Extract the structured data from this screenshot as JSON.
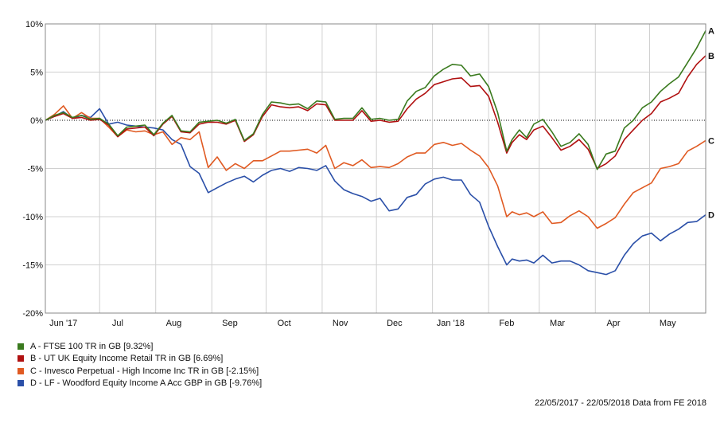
{
  "chart_data": {
    "type": "line",
    "title": "",
    "xlabel": "",
    "ylabel": "",
    "ylim": [
      -20,
      10
    ],
    "yticks": [
      10,
      5,
      0,
      -5,
      -10,
      -15,
      -20
    ],
    "ytick_labels": [
      "10%",
      "5%",
      "0%",
      "-5%",
      "-10%",
      "-15%",
      "-20%"
    ],
    "xlim": [
      0,
      365
    ],
    "xtick_labels": [
      "Jun '17",
      "Jul",
      "Aug",
      "Sep",
      "Oct",
      "Nov",
      "Dec",
      "Jan '18",
      "Feb",
      "Mar",
      "Apr",
      "May"
    ],
    "xticks": [
      10,
      40,
      71,
      102,
      132,
      163,
      193,
      224,
      255,
      283,
      314,
      344
    ],
    "grid": true,
    "zero_line": true,
    "legend_position": "bottom-left",
    "series": [
      {
        "name": "A - FTSE 100 TR in GB [9.32%]",
        "end_label": "A",
        "color": "#3a7a1e",
        "x": [
          0,
          5,
          10,
          15,
          20,
          25,
          30,
          35,
          40,
          45,
          50,
          55,
          60,
          65,
          70,
          75,
          80,
          85,
          90,
          95,
          100,
          105,
          110,
          115,
          120,
          125,
          130,
          135,
          140,
          145,
          150,
          155,
          160,
          165,
          170,
          175,
          180,
          185,
          190,
          195,
          200,
          205,
          210,
          215,
          220,
          225,
          230,
          235,
          240,
          245,
          250,
          255,
          258,
          262,
          266,
          270,
          275,
          280,
          285,
          290,
          295,
          300,
          305,
          310,
          315,
          320,
          325,
          330,
          335,
          340,
          345,
          350,
          355,
          360,
          365
        ],
        "y": [
          0,
          0.5,
          0.8,
          0.3,
          0.5,
          0.1,
          0.2,
          -0.4,
          -1.6,
          -0.7,
          -0.6,
          -0.5,
          -1.5,
          -0.3,
          0.5,
          -1.1,
          -1.2,
          -0.2,
          -0.1,
          0,
          -0.3,
          0.1,
          -2.1,
          -1.4,
          0.6,
          1.9,
          1.8,
          1.6,
          1.7,
          1.2,
          2.0,
          1.9,
          0.1,
          0.2,
          0.2,
          1.3,
          0.1,
          0.2,
          0,
          0.1,
          2.0,
          3.0,
          3.4,
          4.6,
          5.3,
          5.8,
          5.7,
          4.6,
          4.8,
          3.5,
          0.8,
          -3.2,
          -2.0,
          -1.0,
          -1.8,
          -0.4,
          0.1,
          -1.2,
          -2.7,
          -2.3,
          -1.4,
          -2.5,
          -5.1,
          -3.5,
          -3.2,
          -0.8,
          0.0,
          1.3,
          1.9,
          3.0,
          3.8,
          4.5,
          6.0,
          7.5,
          9.3
        ]
      },
      {
        "name": "B - UT UK Equity Income Retail TR in GB [6.69%]",
        "end_label": "B",
        "color": "#b01010",
        "x": [
          0,
          5,
          10,
          15,
          20,
          25,
          30,
          35,
          40,
          45,
          50,
          55,
          60,
          65,
          70,
          75,
          80,
          85,
          90,
          95,
          100,
          105,
          110,
          115,
          120,
          125,
          130,
          135,
          140,
          145,
          150,
          155,
          160,
          165,
          170,
          175,
          180,
          185,
          190,
          195,
          200,
          205,
          210,
          215,
          220,
          225,
          230,
          235,
          240,
          245,
          250,
          255,
          258,
          262,
          266,
          270,
          275,
          280,
          285,
          290,
          295,
          300,
          305,
          310,
          315,
          320,
          325,
          330,
          335,
          340,
          345,
          350,
          355,
          360,
          365
        ],
        "y": [
          0,
          0.4,
          0.7,
          0.2,
          0.3,
          0.0,
          0.1,
          -0.5,
          -1.7,
          -0.9,
          -0.8,
          -0.7,
          -1.6,
          -0.4,
          0.4,
          -1.2,
          -1.3,
          -0.4,
          -0.2,
          -0.2,
          -0.4,
          0,
          -2.2,
          -1.5,
          0.4,
          1.6,
          1.4,
          1.3,
          1.4,
          1.0,
          1.7,
          1.6,
          0,
          0,
          0,
          1.0,
          -0.1,
          0,
          -0.2,
          -0.1,
          1.2,
          2.2,
          2.8,
          3.7,
          4.0,
          4.3,
          4.4,
          3.5,
          3.6,
          2.5,
          -0.2,
          -3.4,
          -2.3,
          -1.5,
          -2.0,
          -1.0,
          -0.6,
          -1.8,
          -3.1,
          -2.7,
          -2.0,
          -3.0,
          -5.0,
          -4.5,
          -3.7,
          -2.0,
          -1.0,
          0,
          0.7,
          1.9,
          2.3,
          2.8,
          4.5,
          5.8,
          6.7
        ]
      },
      {
        "name": "C - Invesco Perpetual - High Income Inc TR in GB [-2.15%]",
        "end_label": "C",
        "color": "#e05a22",
        "x": [
          0,
          5,
          10,
          15,
          20,
          25,
          30,
          35,
          40,
          45,
          50,
          55,
          60,
          65,
          70,
          75,
          80,
          85,
          90,
          95,
          100,
          105,
          110,
          115,
          120,
          125,
          130,
          135,
          140,
          145,
          150,
          155,
          160,
          165,
          170,
          175,
          180,
          185,
          190,
          195,
          200,
          205,
          210,
          215,
          220,
          225,
          230,
          235,
          240,
          245,
          250,
          255,
          258,
          262,
          266,
          270,
          275,
          280,
          285,
          290,
          295,
          300,
          305,
          310,
          315,
          320,
          325,
          330,
          335,
          340,
          345,
          350,
          355,
          360,
          365
        ],
        "y": [
          0,
          0.6,
          1.5,
          0.2,
          0.8,
          0.2,
          0.2,
          -0.7,
          -1.7,
          -1.0,
          -1.2,
          -1.1,
          -1.5,
          -1.2,
          -2.5,
          -1.8,
          -2.0,
          -1.2,
          -4.9,
          -3.8,
          -5.2,
          -4.5,
          -5.0,
          -4.2,
          -4.2,
          -3.7,
          -3.2,
          -3.2,
          -3.1,
          -3.0,
          -3.4,
          -2.6,
          -5.0,
          -4.4,
          -4.7,
          -4.1,
          -4.9,
          -4.8,
          -4.9,
          -4.5,
          -3.8,
          -3.4,
          -3.4,
          -2.5,
          -2.3,
          -2.6,
          -2.4,
          -3.1,
          -3.7,
          -4.9,
          -6.8,
          -10.0,
          -9.5,
          -9.8,
          -9.6,
          -10.0,
          -9.5,
          -10.7,
          -10.6,
          -9.9,
          -9.4,
          -10.0,
          -11.2,
          -10.7,
          -10.1,
          -8.7,
          -7.5,
          -7.0,
          -6.5,
          -5.0,
          -4.8,
          -4.5,
          -3.2,
          -2.7,
          -2.1
        ]
      },
      {
        "name": "D - LF - Woodford Equity Income A Acc GBP in GB [-9.76%]",
        "end_label": "D",
        "color": "#2a4fa8",
        "x": [
          0,
          5,
          10,
          15,
          20,
          25,
          30,
          35,
          40,
          45,
          50,
          55,
          60,
          65,
          70,
          75,
          80,
          85,
          90,
          95,
          100,
          105,
          110,
          115,
          120,
          125,
          130,
          135,
          140,
          145,
          150,
          155,
          160,
          165,
          170,
          175,
          180,
          185,
          190,
          195,
          200,
          205,
          210,
          215,
          220,
          225,
          230,
          235,
          240,
          245,
          250,
          255,
          258,
          262,
          266,
          270,
          275,
          280,
          285,
          290,
          295,
          300,
          305,
          310,
          315,
          320,
          325,
          330,
          335,
          340,
          345,
          350,
          355,
          360,
          365
        ],
        "y": [
          0,
          0.4,
          0.9,
          0.2,
          0.5,
          0.3,
          1.2,
          -0.4,
          -0.2,
          -0.5,
          -0.6,
          -0.7,
          -0.8,
          -1.0,
          -2.0,
          -2.5,
          -4.8,
          -5.5,
          -7.5,
          -7.0,
          -6.5,
          -6.1,
          -5.8,
          -6.4,
          -5.7,
          -5.2,
          -5.0,
          -5.3,
          -4.9,
          -5.0,
          -5.2,
          -4.7,
          -6.3,
          -7.2,
          -7.6,
          -7.9,
          -8.4,
          -8.1,
          -9.4,
          -9.2,
          -8.0,
          -7.7,
          -6.6,
          -6.1,
          -5.9,
          -6.2,
          -6.2,
          -7.7,
          -8.5,
          -11.0,
          -13.1,
          -15.0,
          -14.4,
          -14.6,
          -14.5,
          -14.8,
          -14.0,
          -14.8,
          -14.6,
          -14.6,
          -15.0,
          -15.6,
          -15.8,
          -16.0,
          -15.6,
          -14.0,
          -12.8,
          -12.0,
          -11.7,
          -12.5,
          -11.8,
          -11.3,
          -10.6,
          -10.5,
          -9.8
        ]
      }
    ]
  },
  "footer": {
    "text": "22/05/2017 - 22/05/2018 Data from FE 2018"
  }
}
